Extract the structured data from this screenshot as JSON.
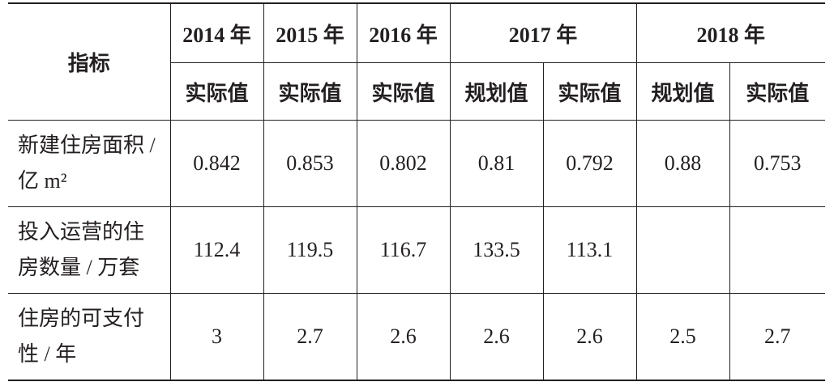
{
  "table": {
    "header": {
      "label": "指标",
      "years": [
        "2014 年",
        "2015 年",
        "2016 年",
        "2017 年",
        "2018 年"
      ],
      "subheaders": [
        "实际值",
        "实际值",
        "实际值",
        "规划值",
        "实际值",
        "规划值",
        "实际值"
      ]
    },
    "rows": [
      {
        "label": "新建住房面积 / 亿 m²",
        "values": [
          "0.842",
          "0.853",
          "0.802",
          "0.81",
          "0.792",
          "0.88",
          "0.753"
        ]
      },
      {
        "label": "投入运营的住房数量 / 万套",
        "values": [
          "112.4",
          "119.5",
          "116.7",
          "133.5",
          "113.1"
        ]
      },
      {
        "label": "住房的可支付性 / 年",
        "values": [
          "3",
          "2.7",
          "2.6",
          "2.6",
          "2.6",
          "2.5",
          "2.7"
        ]
      }
    ]
  }
}
